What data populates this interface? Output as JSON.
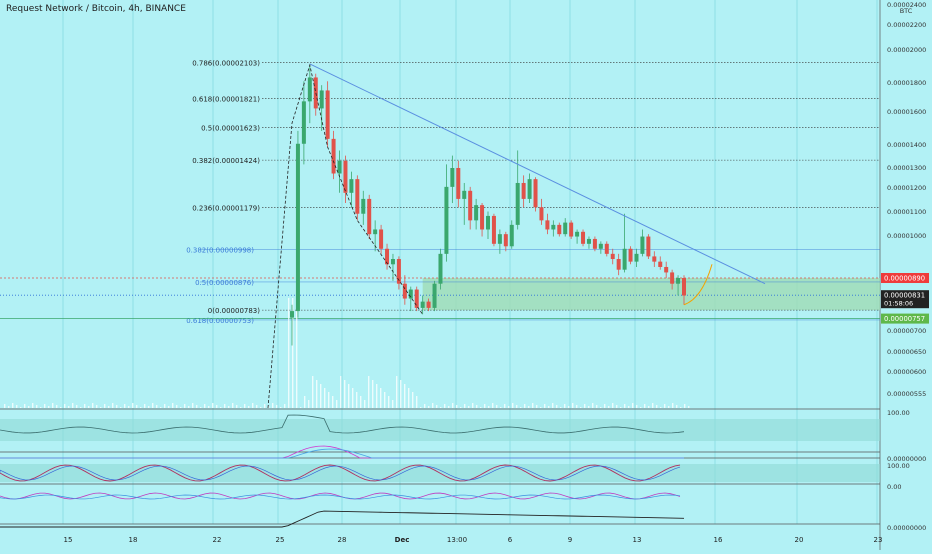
{
  "header": {
    "symbol_title": "Request Network / Bitcoin, 4h, BINANCE"
  },
  "price_axis": {
    "unit": "BTC",
    "labels": [
      "0.00002400",
      "0.00002200",
      "0.00002000",
      "0.00001800",
      "0.00001600",
      "0.00001400",
      "0.00001300",
      "0.00001200",
      "0.00001100",
      "0.00001000",
      "0.00000700",
      "0.00000650",
      "0.00000600",
      "0.00000555"
    ]
  },
  "price_tags": {
    "resistance": {
      "value": "0.00000890",
      "color": "#ef3b3b"
    },
    "last": {
      "value": "0.00000831",
      "countdown": "01:58:06",
      "color": "#222222"
    },
    "support": {
      "value": "0.00000757",
      "color": "#5fb84a"
    }
  },
  "indicator_axis": {
    "rsi_top": "100.00",
    "pane2_value": "0.00000000",
    "pane3_top": "100.00",
    "pane4_value": "0.00",
    "pane5_value": "0.00000000"
  },
  "time_axis": {
    "labels": [
      "15",
      "18",
      "22",
      "25",
      "28",
      "Dec",
      "13:00",
      "6",
      "9",
      "13",
      "16",
      "20",
      "23"
    ]
  },
  "colors": {
    "background": "#b2f1f5",
    "up_candle": "#3aa76d",
    "down_candle": "#e0524a",
    "trendline": "#5a8fe0",
    "support_zone": "#9fdcb5",
    "fib_black": "#333333",
    "fib_blue": "#3b7bd8"
  },
  "chart_data": {
    "type": "candlestick",
    "title": "Request Network / Bitcoin, 4h, BINANCE",
    "y_unit": "BTC",
    "y_scale": "log",
    "ylim": [
      5.3e-06,
      2.47e-05
    ],
    "fib_levels_black": [
      {
        "label": "0.786(0.00002103)",
        "value": 2.103e-05
      },
      {
        "label": "0.618(0.00001821)",
        "value": 1.821e-05
      },
      {
        "label": "0.5(0.00001623)",
        "value": 1.623e-05
      },
      {
        "label": "0.382(0.00001424)",
        "value": 1.424e-05
      },
      {
        "label": "0.236(0.00001179)",
        "value": 1.179e-05
      },
      {
        "label": "0(0.00000783)",
        "value": 7.83e-06
      }
    ],
    "fib_levels_blue": [
      {
        "label": "0.382(0.00000998)",
        "value": 9.98e-06
      },
      {
        "label": "0.5(0.00000876)",
        "value": 8.76e-06
      },
      {
        "label": "0.618(0.00000753)",
        "value": 7.53e-06
      }
    ],
    "series": [
      {
        "name": "",
        "ohlc": [
          [
            7.6e-06,
            8e-06,
            6.8e-06,
            7.8e-06
          ],
          [
            7.8e-06,
            1.6e-05,
            7.6e-06,
            1.52e-05
          ],
          [
            1.52e-05,
            1.95e-05,
            1.4e-05,
            1.8e-05
          ],
          [
            1.8e-05,
            2.08e-05,
            1.65e-05,
            1.98e-05
          ],
          [
            1.98e-05,
            2.01e-05,
            1.7e-05,
            1.75e-05
          ],
          [
            1.75e-05,
            1.92e-05,
            1.6e-05,
            1.88e-05
          ],
          [
            1.88e-05,
            1.95e-05,
            1.5e-05,
            1.55e-05
          ],
          [
            1.55e-05,
            1.6e-05,
            1.32e-05,
            1.35e-05
          ],
          [
            1.35e-05,
            1.48e-05,
            1.25e-05,
            1.42e-05
          ],
          [
            1.42e-05,
            1.45e-05,
            1.2e-05,
            1.25e-05
          ],
          [
            1.25e-05,
            1.36e-05,
            1.18e-05,
            1.32e-05
          ],
          [
            1.32e-05,
            1.34e-05,
            1.12e-05,
            1.15e-05
          ],
          [
            1.15e-05,
            1.26e-05,
            1.1e-05,
            1.22e-05
          ],
          [
            1.22e-05,
            1.24e-05,
            1.04e-05,
            1.06e-05
          ],
          [
            1.06e-05,
            1.12e-05,
            9.9e-06,
            1.08e-05
          ],
          [
            1.08e-05,
            1.1e-05,
            9.8e-06,
            1e-05
          ],
          [
            1e-05,
            1.02e-05,
            9.2e-06,
            9.4e-06
          ],
          [
            9.4e-06,
            9.8e-06,
            8.8e-06,
            9.6e-06
          ],
          [
            9.6e-06,
            9.7e-06,
            8.5e-06,
            8.7e-06
          ],
          [
            8.7e-06,
            9e-06,
            8e-06,
            8.2e-06
          ],
          [
            8.2e-06,
            8.6e-06,
            7.8e-06,
            8.5e-06
          ],
          [
            8.5e-06,
            8.6e-06,
            7.8e-06,
            7.9e-06
          ],
          [
            7.9e-06,
            8.3e-06,
            7.7e-06,
            8.1e-06
          ],
          [
            8.1e-06,
            8.2e-06,
            7.8e-06,
            7.9e-06
          ],
          [
            7.9e-06,
            8.8e-06,
            7.8e-06,
            8.7e-06
          ],
          [
            8.7e-06,
            1e-05,
            8.5e-06,
            9.8e-06
          ],
          [
            9.8e-06,
            1.4e-05,
            9.5e-06,
            1.28e-05
          ],
          [
            1.28e-05,
            1.45e-05,
            1.2e-05,
            1.38e-05
          ],
          [
            1.38e-05,
            1.42e-05,
            1.18e-05,
            1.22e-05
          ],
          [
            1.22e-05,
            1.3e-05,
            1.1e-05,
            1.26e-05
          ],
          [
            1.26e-05,
            1.28e-05,
            1.08e-05,
            1.12e-05
          ],
          [
            1.12e-05,
            1.22e-05,
            1.08e-05,
            1.19e-05
          ],
          [
            1.19e-05,
            1.2e-05,
            1.05e-05,
            1.08e-05
          ],
          [
            1.08e-05,
            1.16e-05,
            1.04e-05,
            1.14e-05
          ],
          [
            1.14e-05,
            1.15e-05,
            1.01e-05,
            1.02e-05
          ],
          [
            1.02e-05,
            1.08e-05,
            9.8e-06,
            1.06e-05
          ],
          [
            1.06e-05,
            1.07e-05,
            9.9e-06,
            1.01e-05
          ],
          [
            1.01e-05,
            1.12e-05,
            1e-05,
            1.1e-05
          ],
          [
            1.1e-05,
            1.48e-05,
            1.08e-05,
            1.3e-05
          ],
          [
            1.3e-05,
            1.34e-05,
            1.18e-05,
            1.22e-05
          ],
          [
            1.22e-05,
            1.35e-05,
            1.2e-05,
            1.32e-05
          ],
          [
            1.32e-05,
            1.33e-05,
            1.16e-05,
            1.18e-05
          ],
          [
            1.18e-05,
            1.22e-05,
            1.1e-05,
            1.12e-05
          ],
          [
            1.12e-05,
            1.15e-05,
            1.06e-05,
            1.08e-05
          ],
          [
            1.08e-05,
            1.12e-05,
            1.05e-05,
            1.1e-05
          ],
          [
            1.1e-05,
            1.11e-05,
            1.05e-05,
            1.06e-05
          ],
          [
            1.06e-05,
            1.13e-05,
            1.05e-05,
            1.11e-05
          ],
          [
            1.11e-05,
            1.12e-05,
            1.04e-05,
            1.05e-05
          ],
          [
            1.05e-05,
            1.08e-05,
            1.02e-05,
            1.07e-05
          ],
          [
            1.07e-05,
            1.08e-05,
            1.01e-05,
            1.02e-05
          ],
          [
            1.02e-05,
            1.05e-05,
            1e-05,
            1.04e-05
          ],
          [
            1.04e-05,
            1.05e-05,
            9.9e-06,
            1e-05
          ],
          [
            1e-05,
            1.03e-05,
            9.8e-06,
            1.02e-05
          ],
          [
            1.02e-05,
            1.03e-05,
            9.7e-06,
            9.8e-06
          ],
          [
            9.8e-06,
            1e-05,
            9.4e-06,
            9.6e-06
          ],
          [
            9.6e-06,
            9.8e-06,
            9e-06,
            9.2e-06
          ],
          [
            9.2e-06,
            1.15e-05,
            9.1e-06,
            1e-05
          ],
          [
            1e-05,
            1.01e-05,
            9.4e-06,
            9.5e-06
          ],
          [
            9.5e-06,
            1e-05,
            9.3e-06,
            9.8e-06
          ],
          [
            9.8e-06,
            1.08e-05,
            9.7e-06,
            1.05e-05
          ],
          [
            1.05e-05,
            1.06e-05,
            9.6e-06,
            9.7e-06
          ],
          [
            9.7e-06,
            9.9e-06,
            9.3e-06,
            9.5e-06
          ],
          [
            9.5e-06,
            9.7e-06,
            9.2e-06,
            9.3e-06
          ],
          [
            9.3e-06,
            9.5e-06,
            8.9e-06,
            9.1e-06
          ],
          [
            9.1e-06,
            9.2e-06,
            8.5e-06,
            8.7e-06
          ],
          [
            8.7e-06,
            9e-06,
            8.3e-06,
            8.9e-06
          ],
          [
            8.9e-06,
            9e-06,
            8e-06,
            8.3e-06
          ]
        ]
      }
    ],
    "trendline": {
      "from": 2.09e-05,
      "to": 8.7e-06
    }
  }
}
